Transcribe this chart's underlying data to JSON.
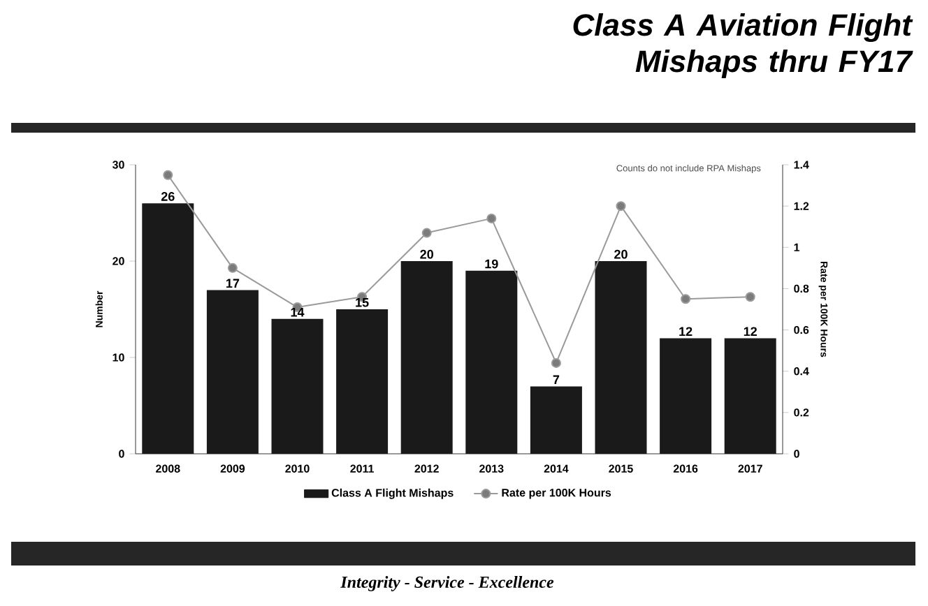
{
  "chart_data": {
    "type": "bar",
    "title": "Class A Aviation Flight Mishaps thru FY17",
    "ylabel": "Number",
    "y2label": "Rate per 100K Hours",
    "categories": [
      "2008",
      "2009",
      "2010",
      "2011",
      "2012",
      "2013",
      "2014",
      "2015",
      "2016",
      "2017"
    ],
    "series": [
      {
        "name": "Class A Flight Mishaps",
        "color": "#1a1a1a",
        "values": [
          26,
          17,
          14,
          15,
          20,
          19,
          7,
          20,
          12,
          12
        ],
        "value_labels": [
          "26",
          "17",
          "14",
          "15",
          "20",
          "19",
          "7",
          "20",
          "12",
          "12"
        ]
      },
      {
        "name": "Rate per 100K Hours",
        "type": "line",
        "axis": "y2",
        "color": "#9a9a9a",
        "marker": "circle",
        "line_style": "solid",
        "values": [
          1.35,
          0.9,
          0.71,
          0.76,
          1.07,
          1.14,
          0.44,
          1.2,
          0.75,
          0.76
        ]
      }
    ],
    "ylim": [
      0,
      30
    ],
    "yticks": [
      0,
      10,
      20,
      30
    ],
    "y2lim": [
      0,
      1.4
    ],
    "y2ticks": [
      0,
      0.2,
      0.4,
      0.6,
      0.8,
      1,
      1.2,
      1.4
    ],
    "legend": "bottom",
    "grid": false,
    "annotations": [
      "Counts do not include RPA Mishaps",
      "Integrity - Service - Excellence"
    ]
  }
}
